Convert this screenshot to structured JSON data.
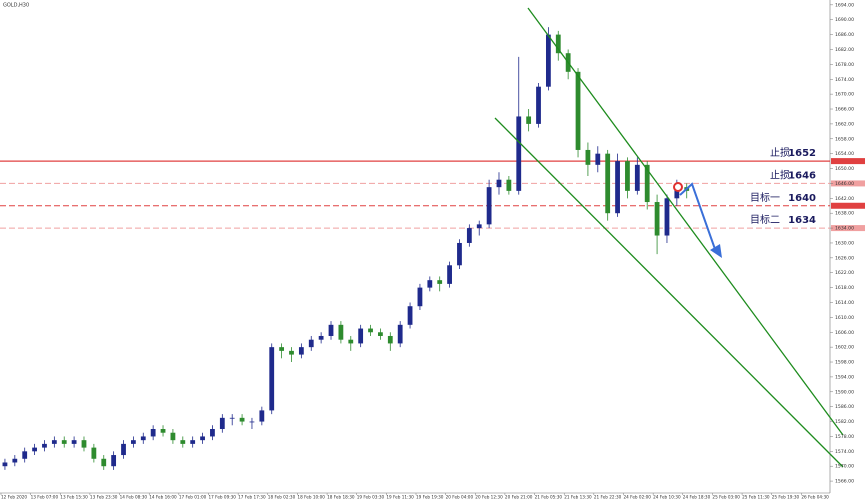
{
  "chart_data": {
    "type": "candlestick",
    "title": "GOLD,H30",
    "x_labels": [
      "12 Feb 2020",
      "13 Feb 07:00",
      "13 Feb 15:30",
      "13 Feb 23:30",
      "14 Feb 08:30",
      "14 Feb 16:00",
      "17 Feb 01:00",
      "17 Feb 09:30",
      "17 Feb 17:30",
      "18 Feb 02:30",
      "18 Feb 10:00",
      "18 Feb 18:30",
      "19 Feb 03:30",
      "19 Feb 11:30",
      "19 Feb 19:30",
      "20 Feb 04:00",
      "20 Feb 12:30",
      "20 Feb 21:00",
      "21 Feb 05:30",
      "21 Feb 13:30",
      "21 Feb 22:30",
      "24 Feb 02:00",
      "24 Feb 10:30",
      "24 Feb 18:30",
      "25 Feb 03:00",
      "25 Feb 11:30",
      "25 Feb 19:30",
      "26 Feb 04:30"
    ],
    "candles": [
      [
        1570,
        1572,
        1569,
        1571
      ],
      [
        1571,
        1573,
        1570,
        1572
      ],
      [
        1572,
        1575,
        1571,
        1574
      ],
      [
        1574,
        1576,
        1573,
        1575
      ],
      [
        1575,
        1577,
        1574,
        1576
      ],
      [
        1576,
        1578,
        1575,
        1577
      ],
      [
        1577,
        1578,
        1575,
        1576
      ],
      [
        1576,
        1578,
        1575,
        1577
      ],
      [
        1577,
        1578,
        1574,
        1575
      ],
      [
        1575,
        1576,
        1571,
        1572
      ],
      [
        1572,
        1573,
        1569,
        1570
      ],
      [
        1570,
        1574,
        1569,
        1573
      ],
      [
        1573,
        1577,
        1572,
        1576
      ],
      [
        1576,
        1578,
        1575,
        1577
      ],
      [
        1577,
        1579,
        1576,
        1578
      ],
      [
        1578,
        1581,
        1577,
        1580
      ],
      [
        1580,
        1581,
        1578,
        1579
      ],
      [
        1579,
        1580,
        1576,
        1577
      ],
      [
        1577,
        1578,
        1575,
        1576
      ],
      [
        1576,
        1578,
        1575,
        1577
      ],
      [
        1577,
        1579,
        1576,
        1578
      ],
      [
        1578,
        1581,
        1577,
        1580
      ],
      [
        1580,
        1584,
        1579,
        1583
      ],
      [
        1583,
        1584,
        1581,
        1583
      ],
      [
        1583,
        1584,
        1581,
        1582
      ],
      [
        1582,
        1583,
        1580,
        1582
      ],
      [
        1582,
        1586,
        1581,
        1585
      ],
      [
        1585,
        1603,
        1584,
        1602
      ],
      [
        1602,
        1603,
        1599,
        1601
      ],
      [
        1601,
        1602,
        1598,
        1600
      ],
      [
        1600,
        1603,
        1599,
        1602
      ],
      [
        1602,
        1605,
        1601,
        1604
      ],
      [
        1604,
        1606,
        1603,
        1605
      ],
      [
        1605,
        1609,
        1604,
        1608
      ],
      [
        1608,
        1609,
        1603,
        1604
      ],
      [
        1604,
        1605,
        1601,
        1603
      ],
      [
        1603,
        1608,
        1602,
        1607
      ],
      [
        1607,
        1608,
        1605,
        1606
      ],
      [
        1606,
        1607,
        1604,
        1605
      ],
      [
        1605,
        1606,
        1601,
        1603
      ],
      [
        1603,
        1609,
        1602,
        1608
      ],
      [
        1608,
        1614,
        1607,
        1613
      ],
      [
        1613,
        1619,
        1612,
        1618
      ],
      [
        1618,
        1621,
        1617,
        1620
      ],
      [
        1620,
        1621,
        1617,
        1619
      ],
      [
        1619,
        1625,
        1618,
        1624
      ],
      [
        1624,
        1631,
        1623,
        1630
      ],
      [
        1630,
        1635,
        1629,
        1634
      ],
      [
        1634,
        1636,
        1632,
        1635
      ],
      [
        1635,
        1647,
        1634,
        1645
      ],
      [
        1645,
        1649,
        1643,
        1647
      ],
      [
        1647,
        1648,
        1643,
        1644
      ],
      [
        1644,
        1680,
        1643,
        1664
      ],
      [
        1664,
        1666,
        1660,
        1662
      ],
      [
        1662,
        1673,
        1661,
        1672
      ],
      [
        1672,
        1688,
        1671,
        1686
      ],
      [
        1686,
        1687,
        1679,
        1681
      ],
      [
        1681,
        1682,
        1674,
        1676
      ],
      [
        1676,
        1677,
        1653,
        1655
      ],
      [
        1655,
        1657,
        1648,
        1651
      ],
      [
        1651,
        1656,
        1649,
        1654
      ],
      [
        1654,
        1655,
        1636,
        1638
      ],
      [
        1638,
        1654,
        1637,
        1652
      ],
      [
        1652,
        1653,
        1642,
        1644
      ],
      [
        1644,
        1653,
        1643,
        1651
      ],
      [
        1651,
        1652,
        1639,
        1641
      ],
      [
        1641,
        1643,
        1627,
        1632
      ],
      [
        1632,
        1643,
        1630,
        1642
      ],
      [
        1642,
        1647,
        1640,
        1645
      ],
      [
        1645,
        1646,
        1642,
        1644
      ]
    ],
    "up_color": "#1f2a8c",
    "down_color": "#2e8b2e",
    "levels": [
      {
        "name": "止损",
        "value": 1652,
        "color": "#e04040",
        "dashed": false
      },
      {
        "name": "止损",
        "value": 1646,
        "color": "#f0a0a0",
        "dashed": true
      },
      {
        "name": "目标一",
        "value": 1640,
        "color": "#e04040",
        "dashed": true
      },
      {
        "name": "目标二",
        "value": 1634,
        "color": "#f0a0a0",
        "dashed": true
      }
    ],
    "ylim": [
      1562.8,
      1695.3
    ],
    "yticks": [
      {
        "value": 1566,
        "label": "1566.00"
      },
      {
        "value": 1570,
        "label": "1570.00"
      },
      {
        "value": 1574,
        "label": "1574.00"
      },
      {
        "value": 1578,
        "label": "1578.00"
      },
      {
        "value": 1582,
        "label": "1582.00"
      },
      {
        "value": 1586,
        "label": "1586.00"
      },
      {
        "value": 1590,
        "label": "1590.00"
      },
      {
        "value": 1594,
        "label": "1594.00"
      },
      {
        "value": 1598,
        "label": "1598.00"
      },
      {
        "value": 1602,
        "label": "1602.00"
      },
      {
        "value": 1606,
        "label": "1606.00"
      },
      {
        "value": 1610,
        "label": "1610.00"
      },
      {
        "value": 1614,
        "label": "1614.00"
      },
      {
        "value": 1618,
        "label": "1618.00"
      },
      {
        "value": 1622,
        "label": "1622.00"
      },
      {
        "value": 1626,
        "label": "1626.00"
      },
      {
        "value": 1630,
        "label": "1630.00"
      },
      {
        "value": 1634,
        "label": "1634.00"
      },
      {
        "value": 1638,
        "label": "1638.00"
      },
      {
        "value": 1642,
        "label": "1642.00"
      },
      {
        "value": 1646,
        "label": "1646.00"
      },
      {
        "value": 1650,
        "label": "1650.00"
      },
      {
        "value": 1654,
        "label": "1654.00"
      },
      {
        "value": 1658,
        "label": "1658.00"
      },
      {
        "value": 1662,
        "label": "1662.00"
      },
      {
        "value": 1666,
        "label": "1666.00"
      },
      {
        "value": 1670,
        "label": "1670.00"
      },
      {
        "value": 1674,
        "label": "1674.00"
      },
      {
        "value": 1678,
        "label": "1678.00"
      },
      {
        "value": 1682,
        "label": "1682.00"
      },
      {
        "value": 1686,
        "label": "1686.00"
      },
      {
        "value": 1690,
        "label": "1690.00"
      },
      {
        "value": 1694,
        "label": "1694.00"
      }
    ],
    "grid": false
  }
}
